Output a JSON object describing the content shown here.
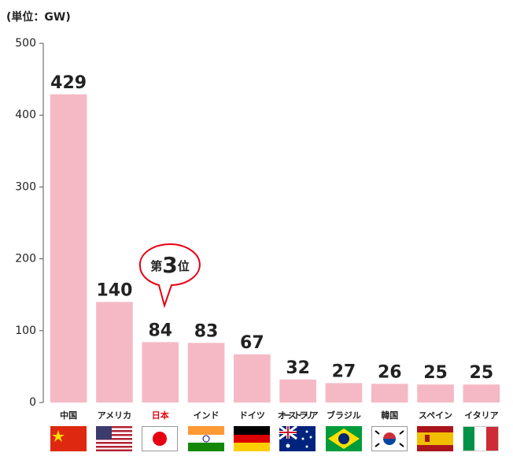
{
  "chart_data": {
    "type": "bar",
    "unit_label": "(単位：GW)",
    "categories": [
      "中国",
      "アメリカ",
      "日本",
      "インド",
      "ドイツ",
      "オーストラリア",
      "ブラジル",
      "韓国",
      "スペイン",
      "イタリア"
    ],
    "category_label_colors": [
      "#222222",
      "#222222",
      "#e60012",
      "#222222",
      "#222222",
      "#222222",
      "#222222",
      "#222222",
      "#222222",
      "#222222"
    ],
    "values": [
      429,
      140,
      84,
      83,
      67,
      32,
      27,
      26,
      25,
      25
    ],
    "color": "#f5b9c5",
    "ylim": [
      0,
      500
    ],
    "yticks": [
      0,
      100,
      200,
      300,
      400,
      500
    ],
    "annotation": [
      "第",
      "3",
      "位"
    ]
  }
}
